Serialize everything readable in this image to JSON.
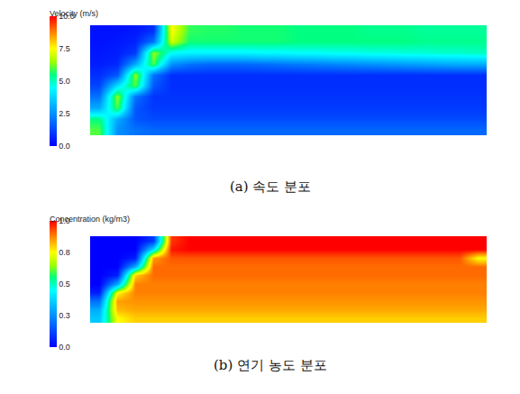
{
  "chart_data": [
    {
      "type": "heatmap",
      "title": "Velocity (m/s)",
      "caption": "(a) 속도 분포",
      "tick_labels": false,
      "colorbar_range": [
        0,
        10
      ],
      "colorbar_ticks": [
        {
          "value": 0,
          "label": "0.0"
        },
        {
          "value": 2.5,
          "label": "2.5"
        },
        {
          "value": 5,
          "label": "5.0"
        },
        {
          "value": 7.5,
          "label": "7.5"
        },
        {
          "value": 10,
          "label": "10.0"
        }
      ],
      "cells": [
        [
          6.0,
          2.5,
          2.0,
          1.8,
          1.8,
          1.8,
          1.8,
          1.8,
          1.8,
          1.8,
          1.8,
          1.8,
          1.8,
          1.8,
          1.8,
          1.8,
          1.8,
          1.8,
          1.8,
          1.8,
          1.8,
          1.8
        ],
        [
          5.5,
          3.0,
          1.5,
          1.3,
          1.3,
          1.3,
          1.3,
          1.3,
          1.3,
          1.3,
          1.3,
          1.3,
          1.3,
          1.3,
          1.3,
          1.3,
          1.3,
          1.3,
          1.3,
          1.3,
          1.3,
          1.3
        ],
        [
          3.0,
          6.0,
          1.5,
          1.0,
          1.0,
          1.0,
          1.0,
          1.0,
          1.0,
          1.0,
          1.0,
          1.0,
          1.0,
          1.0,
          1.0,
          1.0,
          1.0,
          1.0,
          1.0,
          1.0,
          1.0,
          1.0
        ],
        [
          2.0,
          6.5,
          2.0,
          0.9,
          0.9,
          0.9,
          0.9,
          0.9,
          0.9,
          0.9,
          0.9,
          0.9,
          0.9,
          0.9,
          0.9,
          0.9,
          0.9,
          0.9,
          0.9,
          0.9,
          0.9,
          0.9
        ],
        [
          1.2,
          4.0,
          6.0,
          1.5,
          0.8,
          0.8,
          0.8,
          0.8,
          0.8,
          0.8,
          0.8,
          0.8,
          0.8,
          0.8,
          0.8,
          0.8,
          0.8,
          0.8,
          0.8,
          0.8,
          0.8,
          0.8
        ],
        [
          0.8,
          1.5,
          6.5,
          2.0,
          0.8,
          0.8,
          0.8,
          0.8,
          0.8,
          0.8,
          0.8,
          0.8,
          0.8,
          0.8,
          0.8,
          0.8,
          0.8,
          0.8,
          0.8,
          0.8,
          0.8,
          0.8
        ],
        [
          0.5,
          0.7,
          3.0,
          6.0,
          2.5,
          2.0,
          1.8,
          1.8,
          1.8,
          1.9,
          2.0,
          2.1,
          2.2,
          2.3,
          2.4,
          2.5,
          2.6,
          2.7,
          2.8,
          2.9,
          3.0,
          3.0
        ],
        [
          0.4,
          0.5,
          1.0,
          6.5,
          4.5,
          4.3,
          4.3,
          4.3,
          4.3,
          4.4,
          4.4,
          4.5,
          4.5,
          4.6,
          4.6,
          4.7,
          4.7,
          4.8,
          4.8,
          4.9,
          4.9,
          5.0
        ],
        [
          0.3,
          0.4,
          0.6,
          2.0,
          7.0,
          5.6,
          5.6,
          5.6,
          5.6,
          5.6,
          5.6,
          5.5,
          5.5,
          5.5,
          5.5,
          5.5,
          5.5,
          5.5,
          5.4,
          5.4,
          5.4,
          5.4
        ],
        [
          0.3,
          0.3,
          0.4,
          0.8,
          7.5,
          5.8,
          5.7,
          5.7,
          5.6,
          5.6,
          5.6,
          5.5,
          5.5,
          5.5,
          5.5,
          5.4,
          5.4,
          5.4,
          5.3,
          5.3,
          5.3,
          5.3
        ]
      ]
    },
    {
      "type": "heatmap",
      "title": "Concentration (kg/m3)",
      "caption": "(b) 연기 농도 분포",
      "tick_labels": false,
      "colorbar_range": [
        0,
        1
      ],
      "colorbar_ticks": [
        {
          "value": 0,
          "label": "0.0"
        },
        {
          "value": 0.25,
          "label": "0.3"
        },
        {
          "value": 0.5,
          "label": "0.5"
        },
        {
          "value": 0.75,
          "label": "0.8"
        },
        {
          "value": 1,
          "label": "1.0"
        }
      ],
      "cells": [
        [
          0.35,
          0.75,
          0.8,
          0.8,
          0.8,
          0.8,
          0.8,
          0.8,
          0.8,
          0.8,
          0.8,
          0.8,
          0.8,
          0.8,
          0.8,
          0.8,
          0.8,
          0.8,
          0.8,
          0.8,
          0.8,
          0.8
        ],
        [
          0.3,
          0.82,
          0.84,
          0.84,
          0.84,
          0.84,
          0.84,
          0.84,
          0.84,
          0.84,
          0.84,
          0.84,
          0.84,
          0.84,
          0.84,
          0.84,
          0.84,
          0.84,
          0.84,
          0.84,
          0.84,
          0.84
        ],
        [
          0.2,
          0.85,
          0.86,
          0.86,
          0.86,
          0.86,
          0.86,
          0.86,
          0.86,
          0.86,
          0.86,
          0.86,
          0.86,
          0.86,
          0.86,
          0.86,
          0.86,
          0.86,
          0.86,
          0.86,
          0.86,
          0.86
        ],
        [
          0.05,
          0.75,
          0.88,
          0.88,
          0.88,
          0.88,
          0.88,
          0.88,
          0.88,
          0.88,
          0.88,
          0.88,
          0.88,
          0.88,
          0.88,
          0.88,
          0.88,
          0.88,
          0.88,
          0.88,
          0.88,
          0.88
        ],
        [
          0.0,
          0.3,
          0.88,
          0.88,
          0.88,
          0.88,
          0.88,
          0.88,
          0.88,
          0.88,
          0.88,
          0.88,
          0.88,
          0.88,
          0.88,
          0.88,
          0.88,
          0.88,
          0.88,
          0.88,
          0.88,
          0.88
        ],
        [
          0.0,
          0.05,
          0.8,
          0.9,
          0.9,
          0.9,
          0.9,
          0.9,
          0.9,
          0.9,
          0.9,
          0.9,
          0.9,
          0.9,
          0.9,
          0.9,
          0.9,
          0.9,
          0.9,
          0.9,
          0.9,
          0.9
        ],
        [
          0.0,
          0.0,
          0.3,
          0.9,
          0.9,
          0.9,
          0.9,
          0.9,
          0.9,
          0.9,
          0.9,
          0.9,
          0.9,
          0.9,
          0.9,
          0.9,
          0.9,
          0.9,
          0.9,
          0.9,
          0.9,
          0.9
        ],
        [
          0.0,
          0.0,
          0.05,
          0.85,
          0.92,
          0.92,
          0.92,
          0.92,
          0.92,
          0.92,
          0.92,
          0.92,
          0.92,
          0.92,
          0.92,
          0.92,
          0.92,
          0.92,
          0.92,
          0.92,
          0.92,
          0.75
        ],
        [
          0.0,
          0.0,
          0.0,
          0.4,
          0.98,
          1.0,
          1.0,
          1.0,
          1.0,
          1.0,
          1.0,
          1.0,
          1.0,
          1.0,
          1.0,
          1.0,
          1.0,
          1.0,
          1.0,
          1.0,
          1.0,
          1.0
        ],
        [
          0.0,
          0.0,
          0.0,
          0.1,
          0.95,
          1.0,
          1.0,
          1.0,
          1.0,
          1.0,
          1.0,
          1.0,
          1.0,
          1.0,
          1.0,
          1.0,
          1.0,
          1.0,
          1.0,
          1.0,
          1.0,
          1.0
        ]
      ]
    }
  ]
}
